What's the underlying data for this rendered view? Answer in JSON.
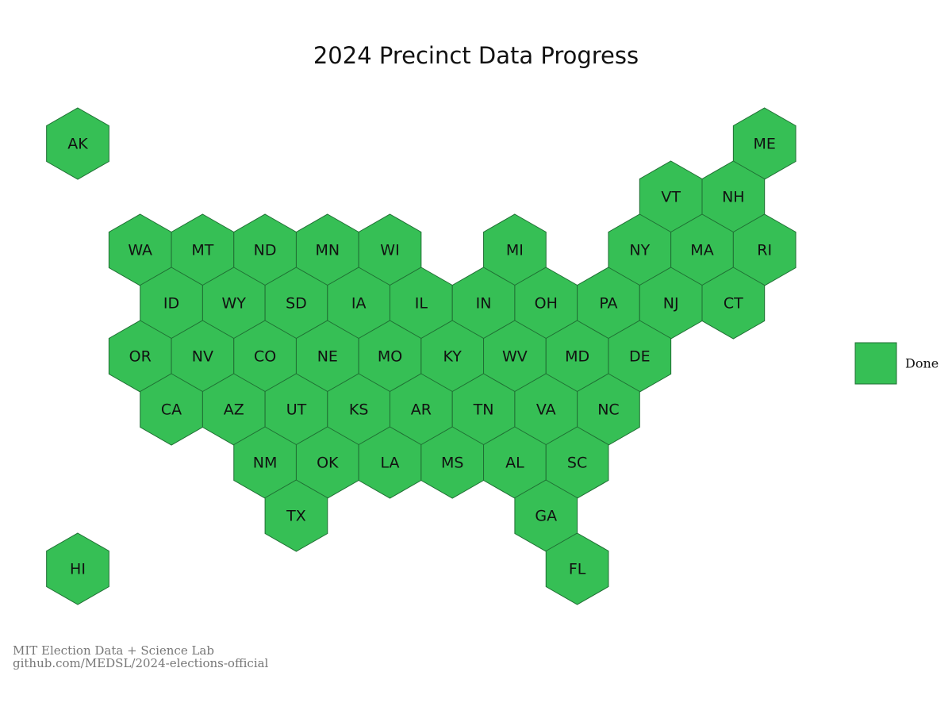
{
  "title": "2024 Precinct Data Progress",
  "legend": [
    {
      "label": "Done",
      "color": "#36bf55"
    }
  ],
  "map": {
    "rows": [
      [
        "AK",
        null,
        null,
        null,
        null,
        null,
        null,
        null,
        null,
        null,
        null,
        "ME"
      ],
      [
        null,
        null,
        null,
        null,
        null,
        null,
        null,
        null,
        null,
        "VT",
        "NH"
      ],
      [
        null,
        "WA",
        "MT",
        "ND",
        "MN",
        "WI",
        null,
        "MI",
        null,
        "NY",
        "MA",
        "RI"
      ],
      [
        null,
        "ID",
        "WY",
        "SD",
        "IA",
        "IL",
        "IN",
        "OH",
        "PA",
        "NJ",
        "CT"
      ],
      [
        null,
        "OR",
        "NV",
        "CO",
        "NE",
        "MO",
        "KY",
        "WV",
        "MD",
        "DE"
      ],
      [
        null,
        "CA",
        "AZ",
        "UT",
        "KS",
        "AR",
        "TN",
        "VA",
        "NC"
      ],
      [
        null,
        null,
        null,
        "NM",
        "OK",
        "LA",
        "MS",
        "AL",
        "SC"
      ],
      [
        null,
        null,
        null,
        "TX",
        null,
        null,
        null,
        "GA"
      ],
      [
        "HI",
        null,
        null,
        null,
        null,
        null,
        null,
        null,
        "FL"
      ]
    ]
  },
  "source": [
    "MIT Election Data + Science Lab",
    "github.com/MEDSL/2024-elections-official"
  ]
}
